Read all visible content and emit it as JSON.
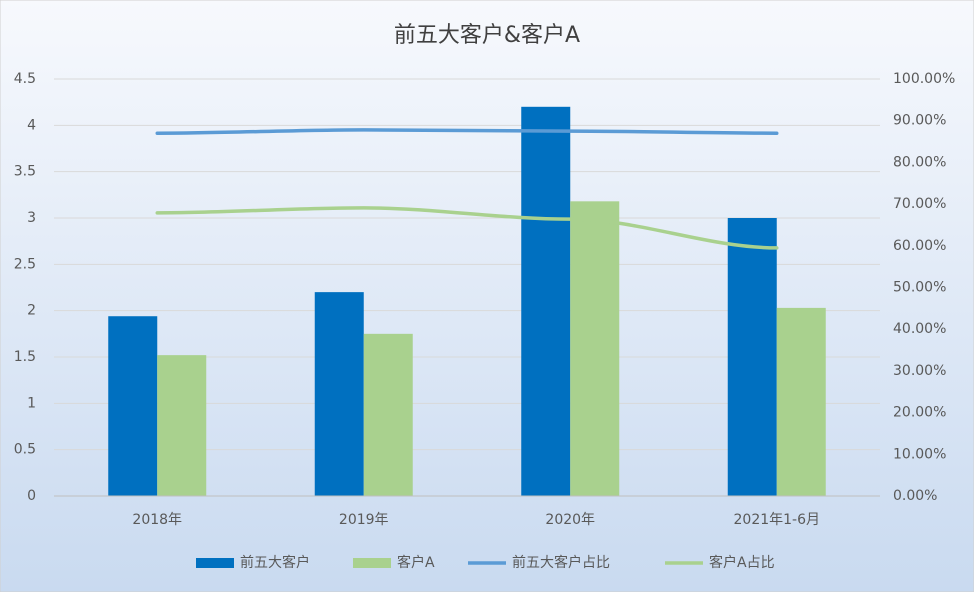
{
  "chart_data": {
    "type": "combo",
    "title": "前五大客户&客户A",
    "categories": [
      "2018年",
      "2019年",
      "2020年",
      "2021年1-6月"
    ],
    "series": [
      {
        "name": "前五大客户",
        "type": "bar",
        "color": "#0070c0",
        "values": [
          1.94,
          2.2,
          4.2,
          3.0
        ]
      },
      {
        "name": "客户A",
        "type": "bar",
        "color": "#a9d18e",
        "values": [
          1.52,
          1.75,
          3.18,
          2.03
        ]
      },
      {
        "name": "前五大客户占比",
        "type": "line",
        "axis": "y2",
        "color": "#5b9bd5",
        "values": [
          87.0,
          87.8,
          87.5,
          87.0
        ]
      },
      {
        "name": "客户A占比",
        "type": "line",
        "axis": "y2",
        "color": "#a9d18e",
        "values": [
          67.9,
          69.1,
          66.4,
          59.5
        ]
      }
    ],
    "ylim": [
      0,
      4.5
    ],
    "yticks": [
      0,
      0.5,
      1,
      1.5,
      2,
      2.5,
      3,
      3.5,
      4,
      4.5
    ],
    "y2lim": [
      0,
      100
    ],
    "y2ticks": [
      {
        "value": 0,
        "label": "0.00%"
      },
      {
        "value": 10,
        "label": "10.00%"
      },
      {
        "value": 20,
        "label": "20.00%"
      },
      {
        "value": 30,
        "label": "30.00%"
      },
      {
        "value": 40,
        "label": "40.00%"
      },
      {
        "value": 50,
        "label": "50.00%"
      },
      {
        "value": 60,
        "label": "60.00%"
      },
      {
        "value": 70,
        "label": "70.00%"
      },
      {
        "value": 80,
        "label": "80.00%"
      },
      {
        "value": 90,
        "label": "90.00%"
      },
      {
        "value": 100,
        "label": "100.00%"
      }
    ],
    "grid": true,
    "legend": "bottom"
  }
}
